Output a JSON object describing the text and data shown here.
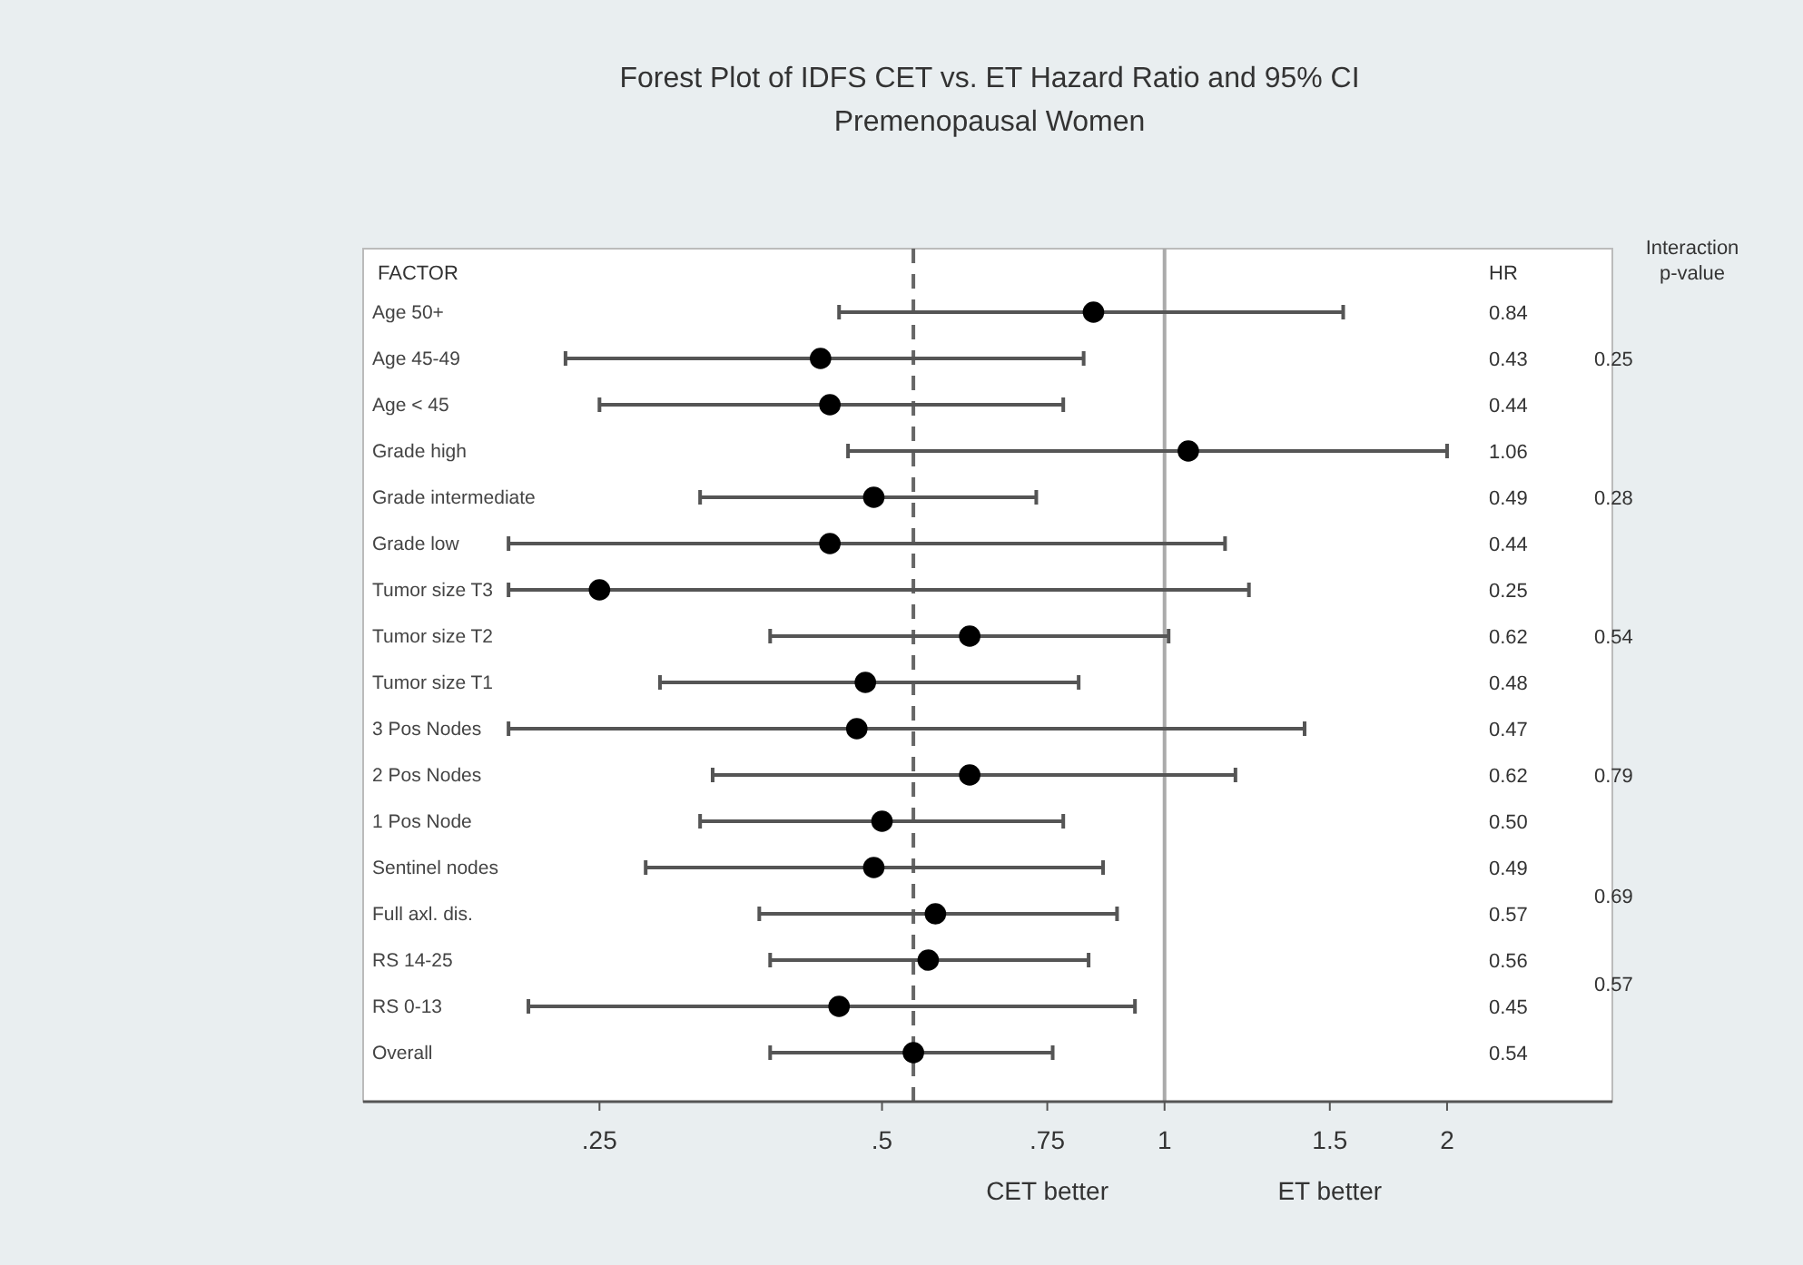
{
  "chart_data": {
    "type": "scatter",
    "orientation": "horizontal",
    "log": "x",
    "marker": "circle",
    "title": "Forest Plot of IDFS CET vs. ET Hazard Ratio and 95% CI",
    "subtitle": "Premenopausal Women",
    "categories": [
      "Age 50+",
      "Age 45-49",
      "Age < 45",
      "Grade high",
      "Grade intermediate",
      "Grade low",
      "Tumor size T3",
      "Tumor size T2",
      "Tumor size T1",
      "3 Pos Nodes",
      "2 Pos Nodes",
      "1 Pos Node",
      "Sentinel nodes",
      "Full axl. dis.",
      "RS 14-25",
      "RS 0-13",
      "Overall"
    ],
    "values": [
      0.84,
      0.43,
      0.44,
      1.06,
      0.49,
      0.44,
      0.25,
      0.62,
      0.48,
      0.47,
      0.62,
      0.5,
      0.49,
      0.57,
      0.56,
      0.45,
      0.54
    ],
    "errors": [
      [
        0.45,
        1.55
      ],
      [
        0.23,
        0.82
      ],
      [
        0.25,
        0.78
      ],
      [
        0.46,
        2
      ],
      [
        0.32,
        0.73
      ],
      [
        0.2,
        1.16
      ],
      [
        0.2,
        1.23
      ],
      [
        0.38,
        1.01
      ],
      [
        0.29,
        0.81
      ],
      [
        0.2,
        1.41
      ],
      [
        0.33,
        1.19
      ],
      [
        0.32,
        0.78
      ],
      [
        0.28,
        0.86
      ],
      [
        0.37,
        0.89
      ],
      [
        0.38,
        0.83
      ],
      [
        0.21,
        0.93
      ],
      [
        0.38,
        0.76
      ]
    ],
    "color": "#000000",
    "xlim": [
      0.14,
      3
    ],
    "xticks": [
      {
        "value": 0.25,
        "label": ".25"
      },
      {
        "value": 0.5,
        "label": ".5"
      },
      {
        "value": 0.75,
        "label": ".75"
      },
      1,
      1.5,
      2
    ],
    "ref_lines": [
      {
        "axis": "x",
        "value": 0.54,
        "line_style": "dashed",
        "color": "#666666"
      },
      {
        "axis": "x",
        "value": 1,
        "line_style": "solid",
        "color": "#aaaaaa"
      }
    ],
    "grid": false,
    "annotations": [
      "FACTOR",
      "HR",
      "Interaction p-value",
      "CET better",
      "ET better",
      "0.84",
      "0.43",
      "0.44",
      "1.06",
      "0.49",
      "0.44",
      "0.25",
      "0.62",
      "0.48",
      "0.47",
      "0.62",
      "0.50",
      "0.49",
      "0.57",
      "0.56",
      "0.45",
      "0.54",
      "0.25",
      "0.28",
      "0.54",
      "0.79",
      "0.69",
      "0.57"
    ]
  }
}
